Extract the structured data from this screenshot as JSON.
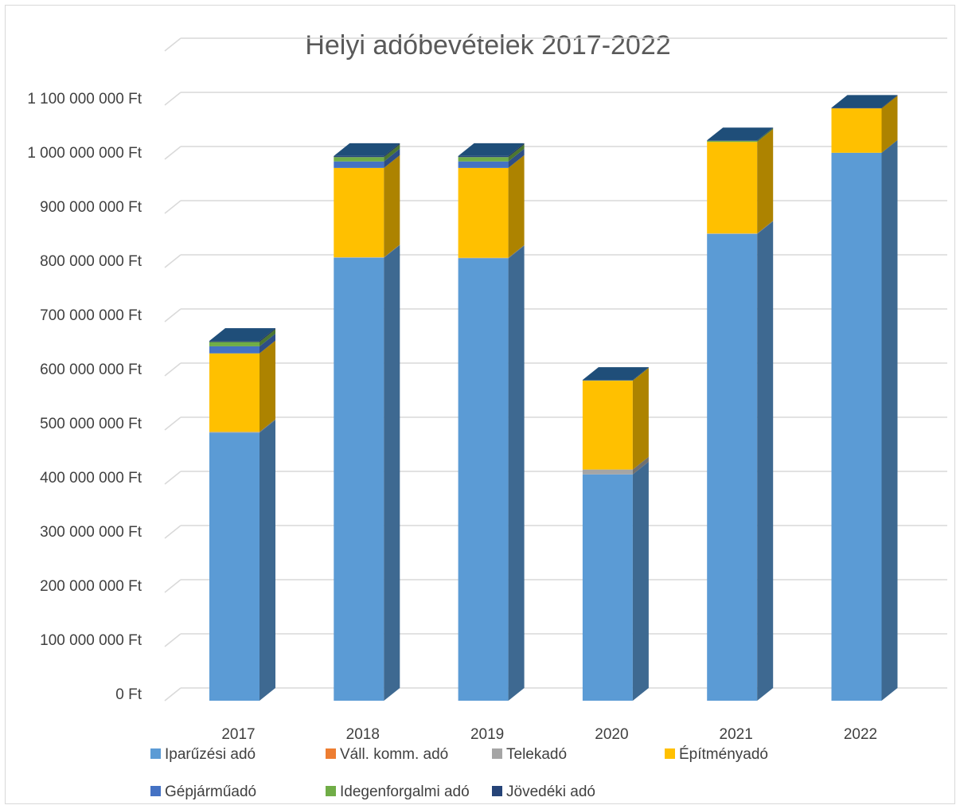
{
  "chart_data": {
    "type": "bar",
    "stacked": true,
    "title": "Helyi adóbevételek 2017-2022",
    "xlabel": "",
    "ylabel": "",
    "ylim": [
      0,
      1200000000
    ],
    "ytick_values": [
      0,
      100000000,
      200000000,
      300000000,
      400000000,
      500000000,
      600000000,
      700000000,
      800000000,
      900000000,
      1000000000,
      1100000000
    ],
    "ytick_labels": [
      "0 Ft",
      "100 000 000 Ft",
      "200 000 000 Ft",
      "300 000 000 Ft",
      "400 000 000 Ft",
      "500 000 000 Ft",
      "600 000 000 Ft",
      "700 000 000 Ft",
      "800 000 000 Ft",
      "900 000 000 Ft",
      "1 000 000 000 Ft",
      "1 100 000 000 Ft"
    ],
    "categories": [
      "2017",
      "2018",
      "2019",
      "2020",
      "2021",
      "2022"
    ],
    "grid": true,
    "legend_position": "bottom",
    "series": [
      {
        "name": "Iparűzési adó",
        "color": "#5b9bd5",
        "values": [
          495000000,
          818000000,
          817000000,
          418000000,
          862000000,
          1012000000
        ]
      },
      {
        "name": "Váll. komm. adó",
        "color": "#ed7d31",
        "values": [
          0,
          0,
          0,
          0,
          0,
          0
        ]
      },
      {
        "name": "Telekadó",
        "color": "#a5a5a5",
        "values": [
          1500000,
          1000000,
          1000000,
          9000000,
          1000000,
          0
        ]
      },
      {
        "name": "Építményadó",
        "color": "#ffc000",
        "values": [
          145000000,
          165000000,
          166000000,
          164000000,
          169000000,
          82000000
        ]
      },
      {
        "name": "Gépjárműadó",
        "color": "#4472c4",
        "values": [
          13000000,
          12000000,
          12000000,
          0,
          0,
          0
        ]
      },
      {
        "name": "Idegenforgalmi adó",
        "color": "#70ad47",
        "values": [
          8000000,
          8000000,
          8000000,
          500000,
          2000000,
          0
        ]
      },
      {
        "name": "Jövedéki adó",
        "color": "#264478",
        "values": [
          2000000,
          2000000,
          2000000,
          1000000,
          1000000,
          1000000
        ]
      }
    ]
  }
}
